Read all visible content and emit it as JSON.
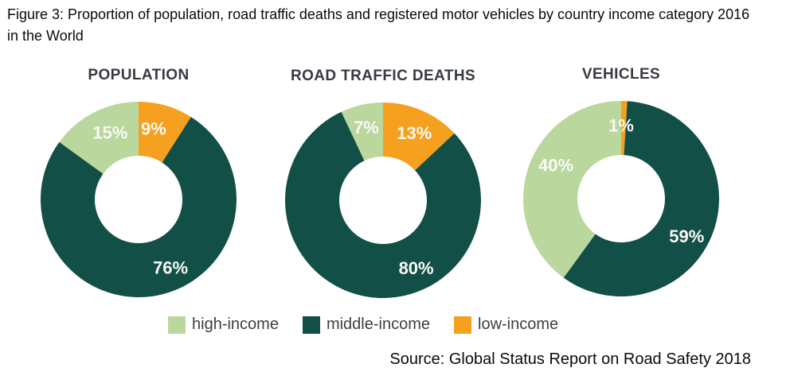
{
  "figure": {
    "caption": "Figure 3: Proportion of population, road traffic deaths and registered motor vehicles by country income category 2016 in the World",
    "source": "Source: Global Status Report on Road Safety 2018"
  },
  "colors": {
    "high_income": "#BAD79D",
    "middle_income": "#124F47",
    "low_income": "#F5A11F",
    "slice_label": "#FAFAF5",
    "chart_title": "#363B42"
  },
  "legend": {
    "position": "bottom",
    "items": [
      {
        "label": "high-income",
        "color_key": "high_income"
      },
      {
        "label": "middle-income",
        "color_key": "middle_income"
      },
      {
        "label": "low-income",
        "color_key": "low_income"
      }
    ]
  },
  "chart_data": [
    {
      "type": "pie",
      "subtype": "donut",
      "title": "POPULATION",
      "unit": "percent",
      "slice_order_clockwise_from_top": [
        "low-income",
        "middle-income",
        "high-income"
      ],
      "slices": [
        {
          "category": "low-income",
          "value": 9,
          "label": "9%",
          "color_key": "low_income",
          "label_az": 12,
          "label_r": 91
        },
        {
          "category": "middle-income",
          "value": 76,
          "label": "76%",
          "color_key": "middle_income",
          "label_az": 155,
          "label_r": 95
        },
        {
          "category": "high-income",
          "value": 15,
          "label": "15%",
          "color_key": "high_income",
          "label_az": 337,
          "label_r": 91
        }
      ]
    },
    {
      "type": "pie",
      "subtype": "donut",
      "title": "ROAD TRAFFIC DEATHS",
      "unit": "percent",
      "slice_order_clockwise_from_top": [
        "low-income",
        "middle-income",
        "high-income"
      ],
      "slices": [
        {
          "category": "low-income",
          "value": 13,
          "label": "13%",
          "color_key": "low_income",
          "label_az": 25,
          "label_r": 93
        },
        {
          "category": "middle-income",
          "value": 80,
          "label": "80%",
          "color_key": "middle_income",
          "label_az": 154,
          "label_r": 95
        },
        {
          "category": "high-income",
          "value": 7,
          "label": "7%",
          "color_key": "high_income",
          "label_az": 347,
          "label_r": 94
        }
      ]
    },
    {
      "type": "pie",
      "subtype": "donut",
      "title": "VEHICLES",
      "unit": "percent",
      "slice_order_clockwise_from_top": [
        "low-income",
        "middle-income",
        "high-income"
      ],
      "slices": [
        {
          "category": "low-income",
          "value": 1,
          "label": "1%",
          "color_key": "low_income",
          "label_az": 0,
          "label_r": 92
        },
        {
          "category": "middle-income",
          "value": 59,
          "label": "59%",
          "color_key": "middle_income",
          "label_az": 120,
          "label_r": 95
        },
        {
          "category": "high-income",
          "value": 40,
          "label": "40%",
          "color_key": "high_income",
          "label_az": 297,
          "label_r": 92
        }
      ]
    }
  ]
}
